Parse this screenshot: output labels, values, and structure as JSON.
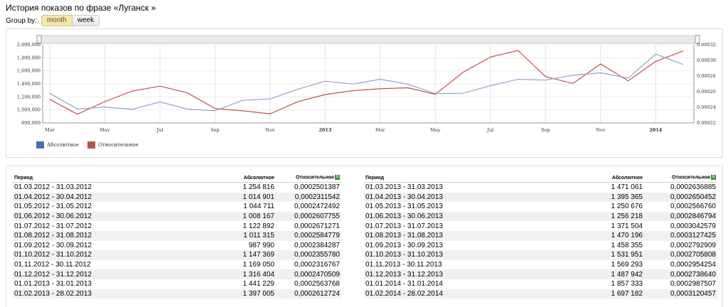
{
  "title": "История показов по фразе «Луганск »",
  "group_by": {
    "label": "Group by:",
    "options": [
      "month",
      "week"
    ],
    "selected": "month"
  },
  "colors": {
    "absolute": "#8ba4d3",
    "relative": "#c0504d",
    "absolute_legend": "#4a6db5",
    "relative_legend": "#b9524d"
  },
  "legend": {
    "absolute": "Абсолютное",
    "relative": "Относительное"
  },
  "chart_data": {
    "type": "line",
    "x": [
      "2012-03",
      "2012-04",
      "2012-05",
      "2012-06",
      "2012-07",
      "2012-08",
      "2012-09",
      "2012-10",
      "2012-11",
      "2012-12",
      "2013-01",
      "2013-02",
      "2013-03",
      "2013-04",
      "2013-05",
      "2013-06",
      "2013-07",
      "2013-08",
      "2013-09",
      "2013-10",
      "2013-11",
      "2013-12",
      "2014-01",
      "2014-02"
    ],
    "x_tick_labels": [
      "Mar",
      "May",
      "Jul",
      "Sep",
      "Nov",
      "2013",
      "Mar",
      "May",
      "Jul",
      "Sep",
      "Nov",
      "2014"
    ],
    "y_left_ticks": [
      "2,000,000",
      "1,800,000",
      "1,600,000",
      "1,400,000",
      "1,200,000",
      "1,000,000",
      "800,000"
    ],
    "y_right_ticks": [
      "0.00032",
      "0.00030",
      "0.00028",
      "0.00026",
      "0.00024",
      "0.00022"
    ],
    "ylim_left": [
      800000,
      2000000
    ],
    "ylim_right": [
      0.00022,
      0.00032
    ],
    "series": [
      {
        "name": "Абсолютное",
        "axis": "left",
        "values": [
          1254816,
          1014901,
          1044711,
          1008167,
          1122892,
          1011315,
          987990,
          1147369,
          1169050,
          1316404,
          1441229,
          1397005,
          1471061,
          1395365,
          1250676,
          1256218,
          1371504,
          1470196,
          1458355,
          1531951,
          1569293,
          1487942,
          1857333,
          1697182
        ]
      },
      {
        "name": "Относительное",
        "axis": "right",
        "values": [
          0.0002501387,
          0.0002311542,
          0.0002472492,
          0.0002607755,
          0.0002671271,
          0.0002584779,
          0.0002384287,
          0.000235578,
          0.0002316767,
          0.0002470509,
          0.0002563768,
          0.0002612724,
          0.0002636885,
          0.0002650452,
          0.000256676,
          0.0002846794,
          0.0003042579,
          0.0003127425,
          0.0002792909,
          0.0002705808,
          0.0002954254,
          0.000273864,
          0.0002987507,
          0.0003120457
        ]
      }
    ],
    "grid": true,
    "legend_position": "bottom-left"
  },
  "table": {
    "headers": {
      "period": "Период",
      "absolute": "Абсолютное",
      "relative": "Относительное",
      "excel_icon": "excel-icon"
    },
    "left_rows": [
      [
        "01.03.2012 - 31.03.2012",
        "1 254 816",
        "0,0002501387"
      ],
      [
        "01.04.2012 - 30.04.2012",
        "1 014 901",
        "0,0002311542"
      ],
      [
        "01.05.2012 - 31.05.2012",
        "1 044 711",
        "0,0002472492"
      ],
      [
        "01.06.2012 - 30.06.2012",
        "1 008 167",
        "0,0002607755"
      ],
      [
        "01.07.2012 - 31.07.2012",
        "1 122 892",
        "0,0002671271"
      ],
      [
        "01.08.2012 - 31.08.2012",
        "1 011 315",
        "0,0002584779"
      ],
      [
        "01.09.2012 - 30.09.2012",
        "987 990",
        "0,0002384287"
      ],
      [
        "01.10.2012 - 31.10.2012",
        "1 147 369",
        "0,0002355780"
      ],
      [
        "01.11.2012 - 30.11.2012",
        "1 169 050",
        "0,0002316767"
      ],
      [
        "01.12.2012 - 31.12.2012",
        "1 316 404",
        "0,0002470509"
      ],
      [
        "01.01.2013 - 31.01.2013",
        "1 441 229",
        "0,0002563768"
      ],
      [
        "01.02.2013 - 28.02.2013",
        "1 397 005",
        "0,0002612724"
      ]
    ],
    "right_rows": [
      [
        "01.03.2013 - 31.03.2013",
        "1 471 061",
        "0,0002636885"
      ],
      [
        "01.04.2013 - 30.04.2013",
        "1 395 365",
        "0,0002650452"
      ],
      [
        "01.05.2013 - 31.05.2013",
        "1 250 676",
        "0,0002566760"
      ],
      [
        "01.06.2013 - 30.06.2013",
        "1 256 218",
        "0,0002846794"
      ],
      [
        "01.07.2013 - 31.07.2013",
        "1 371 504",
        "0,0003042579"
      ],
      [
        "01.08.2013 - 31.08.2013",
        "1 470 196",
        "0,0003127425"
      ],
      [
        "01.09.2013 - 30.09.2013",
        "1 458 355",
        "0,0002792909"
      ],
      [
        "01.10.2013 - 31.10.2013",
        "1 531 951",
        "0,0002705808"
      ],
      [
        "01.11.2013 - 30.11.2013",
        "1 569 293",
        "0,0002954254"
      ],
      [
        "01.12.2013 - 31.12.2013",
        "1 487 942",
        "0,0002738640"
      ],
      [
        "01.01.2014 - 31.01.2014",
        "1 857 333",
        "0,0002987507"
      ],
      [
        "01.02.2014 - 28.02.2014",
        "1 697 182",
        "0,0003120457"
      ]
    ]
  }
}
